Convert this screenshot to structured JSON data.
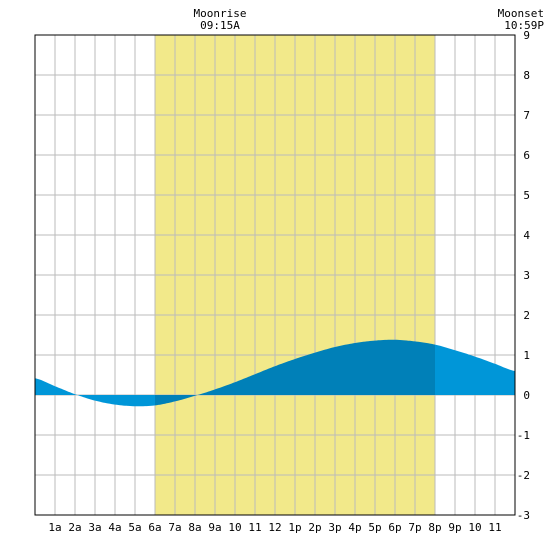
{
  "colors": {
    "background": "#ffffff",
    "daylight": "#f2e98a",
    "grid": "#bbbbbb",
    "tide_day": "#0080b8",
    "tide_night": "#0096d8",
    "frame": "#000000"
  },
  "annotations": {
    "moonrise": {
      "label": "Moonrise",
      "time": "09:15A",
      "hour": 9.25
    },
    "moonset": {
      "label": "Moonset",
      "time": "10:59P",
      "hour": 22.98
    }
  },
  "chart_data": {
    "type": "area",
    "title": "",
    "xlabel": "",
    "ylabel": "",
    "xlim": [
      0,
      24
    ],
    "ylim": [
      -3,
      9
    ],
    "grid": true,
    "x_ticks": [
      {
        "x": 1,
        "label": "1a"
      },
      {
        "x": 2,
        "label": "2a"
      },
      {
        "x": 3,
        "label": "3a"
      },
      {
        "x": 4,
        "label": "4a"
      },
      {
        "x": 5,
        "label": "5a"
      },
      {
        "x": 6,
        "label": "6a"
      },
      {
        "x": 7,
        "label": "7a"
      },
      {
        "x": 8,
        "label": "8a"
      },
      {
        "x": 9,
        "label": "9a"
      },
      {
        "x": 10,
        "label": "10"
      },
      {
        "x": 11,
        "label": "11"
      },
      {
        "x": 12,
        "label": "12"
      },
      {
        "x": 13,
        "label": "1p"
      },
      {
        "x": 14,
        "label": "2p"
      },
      {
        "x": 15,
        "label": "3p"
      },
      {
        "x": 16,
        "label": "4p"
      },
      {
        "x": 17,
        "label": "5p"
      },
      {
        "x": 18,
        "label": "6p"
      },
      {
        "x": 19,
        "label": "7p"
      },
      {
        "x": 20,
        "label": "8p"
      },
      {
        "x": 21,
        "label": "9p"
      },
      {
        "x": 22,
        "label": "10"
      },
      {
        "x": 23,
        "label": "11"
      }
    ],
    "y_ticks": [
      -3,
      -2,
      -1,
      0,
      1,
      2,
      3,
      4,
      5,
      6,
      7,
      8,
      9
    ],
    "daylight": {
      "start": 6.0,
      "end": 20.0
    },
    "series": [
      {
        "x": [
          0,
          1,
          2,
          3,
          4,
          5,
          6,
          7,
          8,
          9,
          10,
          11,
          12,
          13,
          14,
          15,
          16,
          17,
          18,
          19,
          20,
          21,
          22,
          23,
          24
        ],
        "values": [
          0.42,
          0.22,
          0.02,
          -0.14,
          -0.24,
          -0.28,
          -0.26,
          -0.16,
          -0.02,
          0.14,
          0.32,
          0.52,
          0.72,
          0.9,
          1.06,
          1.2,
          1.3,
          1.36,
          1.38,
          1.34,
          1.26,
          1.12,
          0.96,
          0.78,
          0.6
        ]
      }
    ]
  }
}
